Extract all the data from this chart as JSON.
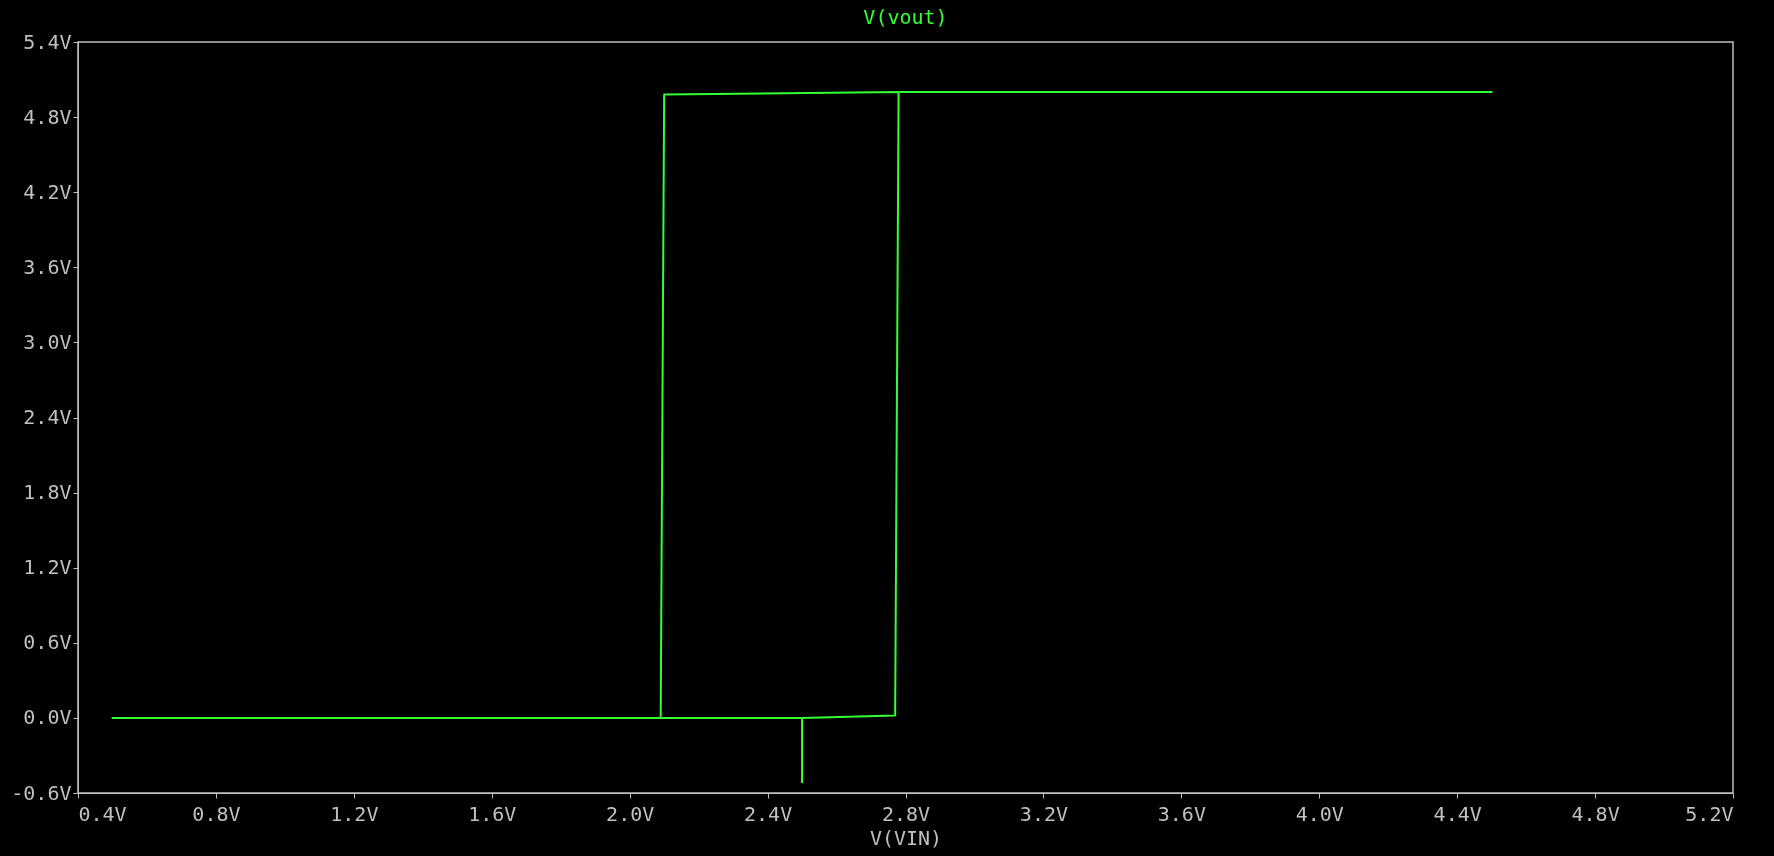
{
  "chart_data": {
    "type": "line",
    "title": "V(vout)",
    "xlabel": "V(VIN)",
    "series": [
      {
        "color": "#33ff33",
        "x": [
          2.5,
          2.5,
          2.77,
          2.78,
          4.5,
          2.78,
          2.1,
          2.09,
          0.5,
          2.09,
          2.5
        ],
        "values": [
          -0.52,
          0,
          0.02,
          5.0,
          5.0,
          5.0,
          4.98,
          0,
          0,
          0,
          0
        ]
      }
    ],
    "xlim": [
      0.4,
      5.2
    ],
    "xticks": [
      {
        "value": 0.4,
        "label": "0.4V"
      },
      {
        "value": 0.8,
        "label": "0.8V"
      },
      {
        "value": 1.2,
        "label": "1.2V"
      },
      {
        "value": 1.6,
        "label": "1.6V"
      },
      {
        "value": 2.0,
        "label": "2.0V"
      },
      {
        "value": 2.4,
        "label": "2.4V"
      },
      {
        "value": 2.8,
        "label": "2.8V"
      },
      {
        "value": 3.2,
        "label": "3.2V"
      },
      {
        "value": 3.6,
        "label": "3.6V"
      },
      {
        "value": 4.0,
        "label": "4.0V"
      },
      {
        "value": 4.4,
        "label": "4.4V"
      },
      {
        "value": 4.8,
        "label": "4.8V"
      },
      {
        "value": 5.2,
        "label": "5.2V"
      }
    ],
    "ylim": [
      -0.6,
      5.4
    ],
    "yticks": [
      {
        "value": -0.6,
        "label": "-0.6V"
      },
      {
        "value": 0.0,
        "label": "0.0V"
      },
      {
        "value": 0.6,
        "label": "0.6V"
      },
      {
        "value": 1.2,
        "label": "1.2V"
      },
      {
        "value": 1.8,
        "label": "1.8V"
      },
      {
        "value": 2.4,
        "label": "2.4V"
      },
      {
        "value": 3.0,
        "label": "3.0V"
      },
      {
        "value": 3.6,
        "label": "3.6V"
      },
      {
        "value": 4.2,
        "label": "4.2V"
      },
      {
        "value": 4.8,
        "label": "4.8V"
      },
      {
        "value": 5.4,
        "label": "5.4V"
      }
    ],
    "grid": false,
    "marker": "none",
    "line_style": "solid"
  }
}
